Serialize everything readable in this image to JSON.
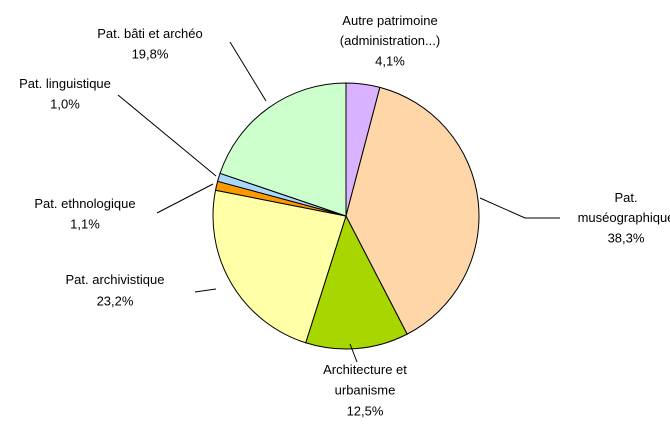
{
  "chart_data": {
    "type": "pie",
    "categories": [
      "Autre patrimoine\n(administration...)",
      "Pat.\nmuséographique",
      "Architecture et\nurbanisme",
      "Pat. archivistique",
      "Pat. ethnologique",
      "Pat. linguistique",
      "Pat. bâti et archéo"
    ],
    "values": [
      4.1,
      38.3,
      12.5,
      23.2,
      1.1,
      1.0,
      19.8
    ],
    "value_labels": [
      "4,1%",
      "38,3%",
      "12,5%",
      "23,2%",
      "1,1%",
      "1,0%",
      "19,8%"
    ],
    "colors": [
      "#d9b3ff",
      "#ffd6a8",
      "#a8d600",
      "#ffffa8",
      "#ff9900",
      "#a8d8ff",
      "#ccffcc"
    ]
  }
}
